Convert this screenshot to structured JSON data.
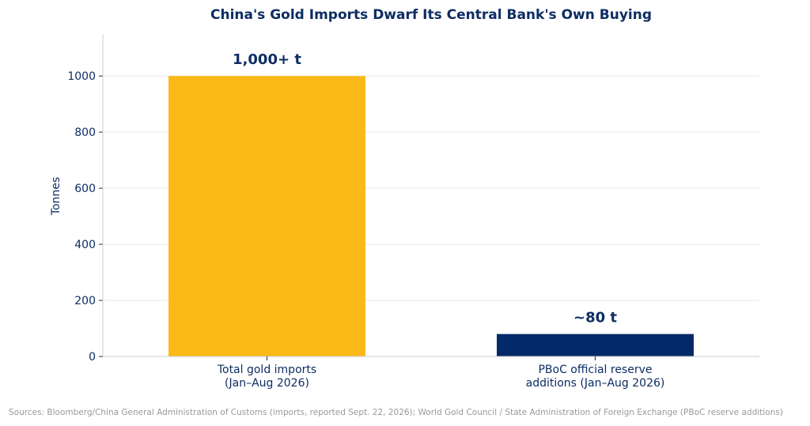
{
  "chart_data": {
    "type": "bar",
    "title": "China's Gold Imports Dwarf Its Central Bank's Own Buying",
    "ylabel": "Tonnes",
    "xlabel": "",
    "ylim": [
      0,
      1150
    ],
    "yticks": [
      0,
      200,
      400,
      600,
      800,
      1000
    ],
    "grid": true,
    "categories": [
      [
        "Total gold imports",
        "(Jan–Aug 2026)"
      ],
      [
        "PBoC official reserve",
        "additions (Jan–Aug 2026)"
      ]
    ],
    "values": [
      1000,
      80
    ],
    "data_labels": [
      "1,000+ t",
      "~80 t"
    ],
    "colors": [
      "#fbb918",
      "#022a69"
    ]
  },
  "colors": {
    "text": "#0d2d63",
    "grid": "#e6e6e6",
    "axis": "#cccccc"
  },
  "source": "Sources: Bloomberg/China General Administration of Customs (imports, reported Sept. 22, 2026); World Gold Council / State Administration of Foreign Exchange (PBoC reserve additions)"
}
